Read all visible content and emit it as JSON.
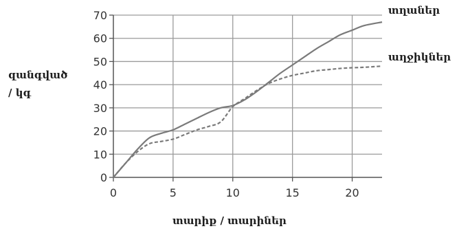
{
  "chart_data": {
    "type": "line",
    "title": "",
    "xlabel": "տարիք / տարիներ",
    "ylabel_line1": "զանգված",
    "ylabel_line2": "/ կգ",
    "xlim": [
      0,
      22.5
    ],
    "ylim": [
      0,
      70
    ],
    "x_ticks": [
      0,
      5,
      10,
      15,
      20
    ],
    "y_ticks": [
      0,
      10,
      20,
      30,
      40,
      50,
      60,
      70
    ],
    "grid": true,
    "series": [
      {
        "name": "տղաներ",
        "style": "solid",
        "color": "#7a7a7a",
        "x": [
          0,
          1,
          2,
          3,
          4,
          5,
          6,
          7,
          8,
          9,
          10,
          11,
          12,
          13,
          14,
          15,
          16,
          17,
          18,
          19,
          20,
          21,
          22.5
        ],
        "y": [
          0,
          6,
          12,
          17,
          19,
          20.5,
          23,
          25.5,
          28,
          30,
          31,
          33.5,
          37,
          41,
          45,
          48.5,
          52,
          55.5,
          58.5,
          61.5,
          63.5,
          65.5,
          67
        ]
      },
      {
        "name": "աղջիկներ",
        "style": "dashed",
        "color": "#7a7a7a",
        "x": [
          0,
          1,
          2,
          3,
          4,
          5,
          6,
          7,
          8,
          9,
          10,
          11,
          12,
          13,
          14,
          15,
          16,
          17,
          18,
          19,
          20,
          21,
          22.5
        ],
        "y": [
          0,
          6,
          11,
          14.5,
          15.5,
          16.5,
          18.5,
          20.5,
          22,
          24,
          30.5,
          34,
          37.5,
          40.5,
          42.5,
          44,
          45,
          46,
          46.5,
          47,
          47.3,
          47.5,
          48
        ]
      }
    ]
  }
}
